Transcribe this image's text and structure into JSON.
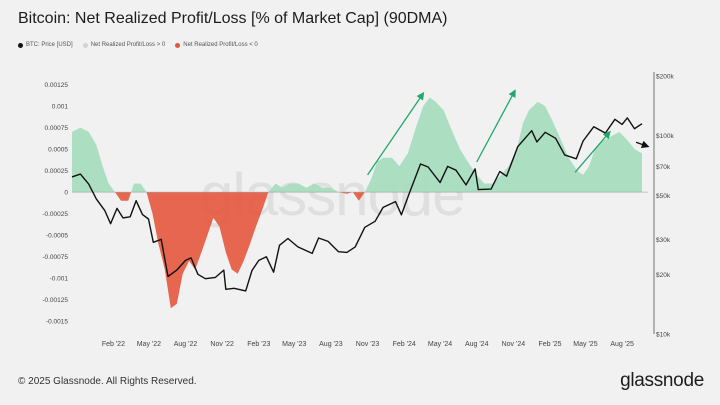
{
  "title": "Bitcoin: Net Realized Profit/Loss [% of Market Cap] (90DMA)",
  "legend": [
    {
      "label": "BTC: Price [USD]",
      "color": "#111111"
    },
    {
      "label": "Net Realized Profit/Loss > 0",
      "color": "#cfd6d0"
    },
    {
      "label": "Net Realized Profit/Loss < 0",
      "color": "#e4573d"
    }
  ],
  "watermark": "glassnode",
  "footer": {
    "copyright": "© 2025 Glassnode. All Rights Reserved.",
    "logo": "glassnode"
  },
  "colors": {
    "positive_fill": "#a8dcbe",
    "negative_fill": "#e4573d",
    "price_line": "#111111",
    "arrow": "#1ea86b",
    "down_arrow": "#111111",
    "background": "#f1f1f1"
  },
  "chart_data": {
    "type": "area",
    "x_type": "date",
    "xlim": [
      "2021-10-20",
      "2025-10-05"
    ],
    "x_ticks": [
      {
        "label": "Feb '22",
        "date": "2022-02-01"
      },
      {
        "label": "May '22",
        "date": "2022-05-01"
      },
      {
        "label": "Aug '22",
        "date": "2022-08-01"
      },
      {
        "label": "Nov '22",
        "date": "2022-11-01"
      },
      {
        "label": "Feb '23",
        "date": "2023-02-01"
      },
      {
        "label": "May '23",
        "date": "2023-05-01"
      },
      {
        "label": "Aug '23",
        "date": "2023-08-01"
      },
      {
        "label": "Nov '23",
        "date": "2023-11-01"
      },
      {
        "label": "Feb '24",
        "date": "2024-02-01"
      },
      {
        "label": "May '24",
        "date": "2024-05-01"
      },
      {
        "label": "Aug '24",
        "date": "2024-08-01"
      },
      {
        "label": "Nov '24",
        "date": "2024-11-01"
      },
      {
        "label": "Feb '25",
        "date": "2025-02-01"
      },
      {
        "label": "May '25",
        "date": "2025-05-01"
      },
      {
        "label": "Aug '25",
        "date": "2025-08-01"
      }
    ],
    "y_left": {
      "ylim": [
        -0.00165,
        0.00135
      ],
      "ticks": [
        0.00125,
        0.001,
        0.00075,
        0.0005,
        0.00025,
        0,
        -0.00025,
        -0.0005,
        -0.00075,
        -0.001,
        -0.00125,
        -0.0015
      ],
      "tick_labels": [
        "0.00125",
        "0.001",
        "0.00075",
        "0.0005",
        "0.00025",
        "0",
        "-0.00025",
        "-0.0005",
        "-0.00075",
        "-0.001",
        "-0.00125",
        "-0.0015"
      ]
    },
    "y_right": {
      "scale": "log",
      "ylim": [
        10000,
        200000
      ],
      "ticks": [
        200000,
        100000,
        70000,
        50000,
        30000,
        20000,
        10000
      ],
      "tick_labels": [
        "$200k",
        "$100k",
        "$70k",
        "$50k",
        "$30k",
        "$20k",
        "$10k"
      ]
    },
    "series": [
      {
        "name": "Net Realized Profit/Loss",
        "axis": "left",
        "points": [
          [
            "2021-10-20",
            0.0007
          ],
          [
            "2021-11-10",
            0.00075
          ],
          [
            "2021-12-01",
            0.0007
          ],
          [
            "2021-12-20",
            0.00055
          ],
          [
            "2022-01-05",
            0.0003
          ],
          [
            "2022-01-20",
            0.0001
          ],
          [
            "2022-02-05",
            0.0
          ],
          [
            "2022-02-20",
            -0.0001
          ],
          [
            "2022-03-10",
            -0.0001
          ],
          [
            "2022-03-25",
            0.0001
          ],
          [
            "2022-04-10",
            0.0001
          ],
          [
            "2022-04-25",
            0.0
          ],
          [
            "2022-05-10",
            -0.00025
          ],
          [
            "2022-05-25",
            -0.0006
          ],
          [
            "2022-06-10",
            -0.0009
          ],
          [
            "2022-06-25",
            -0.00135
          ],
          [
            "2022-07-10",
            -0.0013
          ],
          [
            "2022-07-25",
            -0.00095
          ],
          [
            "2022-08-10",
            -0.0008
          ],
          [
            "2022-08-25",
            -0.0009
          ],
          [
            "2022-09-10",
            -0.0007
          ],
          [
            "2022-09-25",
            -0.0005
          ],
          [
            "2022-10-10",
            -0.0003
          ],
          [
            "2022-10-25",
            -0.0004
          ],
          [
            "2022-11-10",
            -0.0007
          ],
          [
            "2022-11-25",
            -0.0009
          ],
          [
            "2022-12-10",
            -0.00095
          ],
          [
            "2022-12-25",
            -0.0008
          ],
          [
            "2023-01-10",
            -0.0006
          ],
          [
            "2023-01-25",
            -0.0004
          ],
          [
            "2023-02-10",
            -0.0002
          ],
          [
            "2023-02-25",
            0.0
          ],
          [
            "2023-03-15",
            0.0001
          ],
          [
            "2023-04-01",
            5e-05
          ],
          [
            "2023-04-20",
            0.0001
          ],
          [
            "2023-05-10",
            0.0001
          ],
          [
            "2023-06-01",
            5e-05
          ],
          [
            "2023-06-20",
            0.0001
          ],
          [
            "2023-07-10",
            5e-05
          ],
          [
            "2023-08-01",
            5e-05
          ],
          [
            "2023-08-20",
            0.0
          ],
          [
            "2023-09-10",
            -2e-05
          ],
          [
            "2023-09-25",
            0.0
          ],
          [
            "2023-10-10",
            -0.0001
          ],
          [
            "2023-10-25",
            0.0
          ],
          [
            "2023-11-10",
            0.00015
          ],
          [
            "2023-11-25",
            0.00035
          ],
          [
            "2023-12-10",
            0.0004
          ],
          [
            "2024-01-01",
            0.0004
          ],
          [
            "2024-01-20",
            0.0003
          ],
          [
            "2024-02-10",
            0.00045
          ],
          [
            "2024-03-01",
            0.00075
          ],
          [
            "2024-03-20",
            0.001
          ],
          [
            "2024-04-05",
            0.0011
          ],
          [
            "2024-04-20",
            0.00105
          ],
          [
            "2024-05-10",
            0.00095
          ],
          [
            "2024-06-01",
            0.0007
          ],
          [
            "2024-06-20",
            0.0005
          ],
          [
            "2024-07-10",
            0.00035
          ],
          [
            "2024-08-01",
            0.0002
          ],
          [
            "2024-08-20",
            0.0001
          ],
          [
            "2024-09-10",
            0.0001
          ],
          [
            "2024-10-01",
            0.0002
          ],
          [
            "2024-10-20",
            0.0003
          ],
          [
            "2024-11-10",
            0.0005
          ],
          [
            "2024-11-25",
            0.0008
          ],
          [
            "2024-12-10",
            0.00095
          ],
          [
            "2025-01-01",
            0.00105
          ],
          [
            "2025-01-20",
            0.001
          ],
          [
            "2025-02-10",
            0.0008
          ],
          [
            "2025-03-01",
            0.0006
          ],
          [
            "2025-03-20",
            0.0004
          ],
          [
            "2025-04-10",
            0.00025
          ],
          [
            "2025-04-25",
            0.0002
          ],
          [
            "2025-05-10",
            0.0003
          ],
          [
            "2025-05-25",
            0.0005
          ],
          [
            "2025-06-15",
            0.0006
          ],
          [
            "2025-07-05",
            0.00065
          ],
          [
            "2025-07-25",
            0.0007
          ],
          [
            "2025-08-15",
            0.0006
          ],
          [
            "2025-09-01",
            0.0005
          ],
          [
            "2025-09-20",
            0.00045
          ]
        ]
      },
      {
        "name": "BTC: Price [USD]",
        "axis": "right",
        "points": [
          [
            "2021-10-20",
            62000
          ],
          [
            "2021-11-10",
            64000
          ],
          [
            "2021-12-01",
            57000
          ],
          [
            "2021-12-20",
            48000
          ],
          [
            "2022-01-10",
            42000
          ],
          [
            "2022-01-25",
            36000
          ],
          [
            "2022-02-10",
            43000
          ],
          [
            "2022-02-25",
            38500
          ],
          [
            "2022-03-15",
            39000
          ],
          [
            "2022-03-30",
            47000
          ],
          [
            "2022-04-15",
            40000
          ],
          [
            "2022-04-30",
            38000
          ],
          [
            "2022-05-12",
            29000
          ],
          [
            "2022-06-01",
            30000
          ],
          [
            "2022-06-18",
            19500
          ],
          [
            "2022-07-10",
            21000
          ],
          [
            "2022-08-01",
            23500
          ],
          [
            "2022-08-15",
            24200
          ],
          [
            "2022-09-01",
            20000
          ],
          [
            "2022-09-20",
            19000
          ],
          [
            "2022-10-15",
            19300
          ],
          [
            "2022-11-05",
            21000
          ],
          [
            "2022-11-10",
            16800
          ],
          [
            "2022-12-01",
            17000
          ],
          [
            "2022-12-30",
            16500
          ],
          [
            "2023-01-15",
            20900
          ],
          [
            "2023-02-01",
            23500
          ],
          [
            "2023-02-20",
            24500
          ],
          [
            "2023-03-10",
            20500
          ],
          [
            "2023-03-25",
            28000
          ],
          [
            "2023-04-15",
            30300
          ],
          [
            "2023-05-10",
            27500
          ],
          [
            "2023-06-15",
            25500
          ],
          [
            "2023-07-01",
            30500
          ],
          [
            "2023-07-25",
            29300
          ],
          [
            "2023-08-20",
            26000
          ],
          [
            "2023-09-10",
            25800
          ],
          [
            "2023-10-01",
            27500
          ],
          [
            "2023-10-25",
            34500
          ],
          [
            "2023-11-20",
            37000
          ],
          [
            "2023-12-10",
            43500
          ],
          [
            "2024-01-10",
            46500
          ],
          [
            "2024-01-25",
            39900
          ],
          [
            "2024-02-15",
            52000
          ],
          [
            "2024-03-13",
            72000
          ],
          [
            "2024-04-01",
            69500
          ],
          [
            "2024-05-01",
            58000
          ],
          [
            "2024-05-20",
            70000
          ],
          [
            "2024-06-10",
            67000
          ],
          [
            "2024-07-05",
            56500
          ],
          [
            "2024-07-28",
            68000
          ],
          [
            "2024-08-05",
            53500
          ],
          [
            "2024-09-06",
            53800
          ],
          [
            "2024-09-28",
            66000
          ],
          [
            "2024-10-15",
            62500
          ],
          [
            "2024-11-12",
            88000
          ],
          [
            "2024-12-17",
            106000
          ],
          [
            "2024-12-30",
            93000
          ],
          [
            "2025-01-20",
            104000
          ],
          [
            "2025-02-15",
            97000
          ],
          [
            "2025-03-10",
            80000
          ],
          [
            "2025-04-08",
            76500
          ],
          [
            "2025-04-25",
            94000
          ],
          [
            "2025-05-22",
            111000
          ],
          [
            "2025-06-20",
            103000
          ],
          [
            "2025-07-14",
            121000
          ],
          [
            "2025-08-01",
            114000
          ],
          [
            "2025-08-14",
            123000
          ],
          [
            "2025-09-01",
            108500
          ],
          [
            "2025-09-20",
            115000
          ]
        ]
      }
    ],
    "annotations": [
      {
        "type": "arrow",
        "color": "#1ea86b",
        "from": [
          "2023-11-01",
          0.0002
        ],
        "to": [
          "2024-03-20",
          0.00115
        ]
      },
      {
        "type": "arrow",
        "color": "#1ea86b",
        "from": [
          "2024-08-01",
          0.00035
        ],
        "to": [
          "2024-11-05",
          0.00118
        ]
      },
      {
        "type": "arrow",
        "color": "#1ea86b",
        "from": [
          "2025-04-05",
          0.00023
        ],
        "to": [
          "2025-07-01",
          0.0007
        ]
      },
      {
        "type": "arrow",
        "color": "#111111",
        "from": [
          "2025-09-05",
          0.00058
        ],
        "to": [
          "2025-10-05",
          0.00053
        ]
      }
    ]
  }
}
